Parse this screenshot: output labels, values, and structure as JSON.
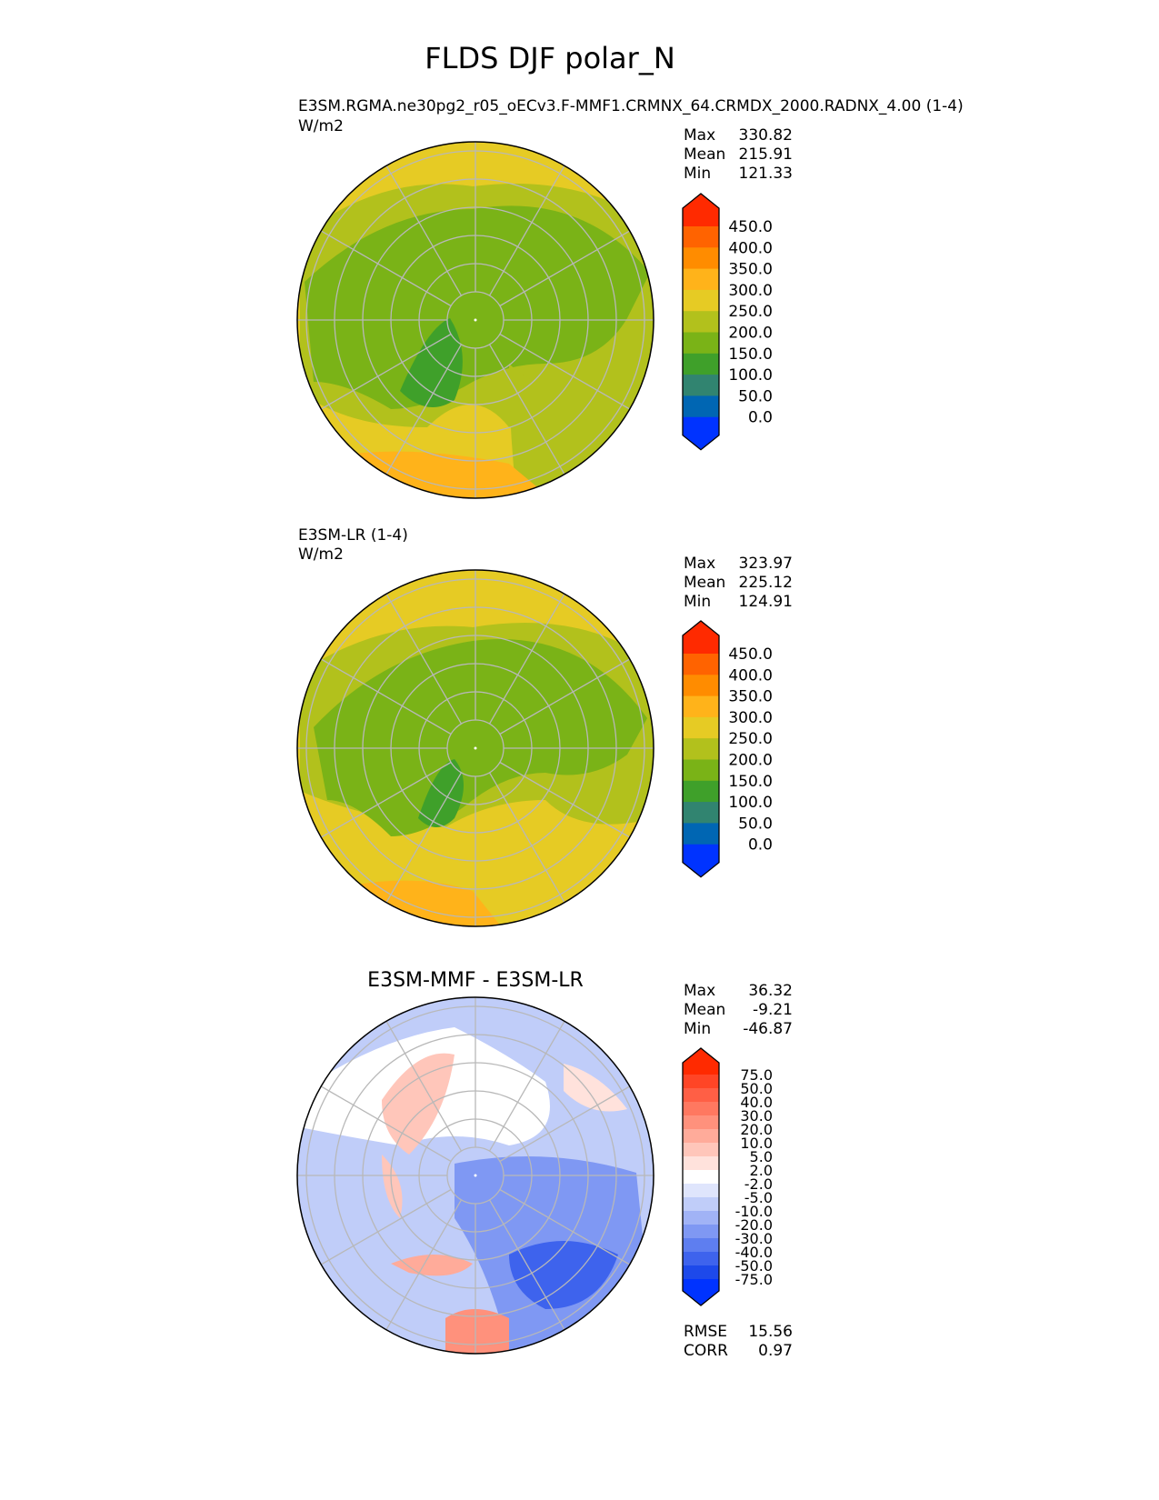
{
  "title": "FLDS DJF polar_N",
  "panels": [
    {
      "subtitle": "E3SM.RGMA.ne30pg2_r05_oECv3.F-MMF1.CRMNX_64.CRMDX_2000.RADNX_4.00 (1-4)",
      "units": "W/m2",
      "stats": {
        "labels": [
          "Max",
          "Mean",
          "Min"
        ],
        "values": [
          "330.82",
          "215.91",
          "121.33"
        ]
      }
    },
    {
      "subtitle": "E3SM-LR (1-4)",
      "units": "W/m2",
      "stats": {
        "labels": [
          "Max",
          "Mean",
          "Min"
        ],
        "values": [
          "323.97",
          "225.12",
          "124.91"
        ]
      }
    },
    {
      "title": "E3SM-MMF - E3SM-LR",
      "stats": {
        "labels": [
          "Max",
          "Mean",
          "Min"
        ],
        "values": [
          "36.32",
          "-9.21",
          "-46.87"
        ]
      },
      "extra_stats": {
        "labels": [
          "RMSE",
          "CORR"
        ],
        "values": [
          "15.56",
          "0.97"
        ]
      }
    }
  ],
  "colorbars": {
    "field": {
      "ticks": [
        "450.0",
        "400.0",
        "350.0",
        "300.0",
        "250.0",
        "200.0",
        "150.0",
        "100.0",
        "50.0",
        "0.0"
      ],
      "colors": [
        "#ff2a00",
        "#ff6300",
        "#ff8c00",
        "#ffb31a",
        "#e6cb24",
        "#b2c11c",
        "#7ab317",
        "#3fa02a",
        "#318470",
        "#0066b3",
        "#0033ff"
      ]
    },
    "diff": {
      "ticks": [
        "75.0",
        "50.0",
        "40.0",
        "30.0",
        "20.0",
        "10.0",
        "5.0",
        "2.0",
        "-2.0",
        "-5.0",
        "-10.0",
        "-20.0",
        "-30.0",
        "-40.0",
        "-50.0",
        "-75.0"
      ],
      "colors": [
        "#ff2a00",
        "#ff4526",
        "#ff5f45",
        "#ff7860",
        "#ff917c",
        "#ffab9a",
        "#ffc6ba",
        "#ffe2dc",
        "#ffffff",
        "#dfe5fc",
        "#c0cdf9",
        "#a1b3f6",
        "#7f98f3",
        "#5e7ef0",
        "#3e63ed",
        "#1d49ea",
        "#0033ff"
      ]
    }
  }
}
